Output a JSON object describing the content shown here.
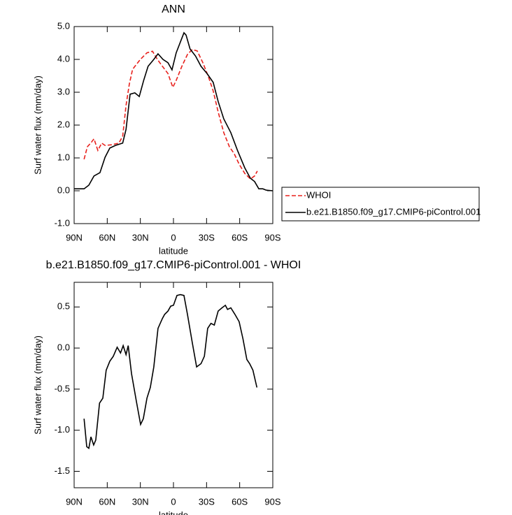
{
  "chart_data": [
    {
      "type": "line",
      "title": "ANN",
      "xlabel": "latitude",
      "ylabel": "Surf water flux (mm/day)",
      "xlim": [
        90,
        -90
      ],
      "ylim": [
        -1,
        5
      ],
      "xticks": [
        {
          "value": 90,
          "label": "90N"
        },
        {
          "value": 60,
          "label": "60N"
        },
        {
          "value": 30,
          "label": "30N"
        },
        0,
        {
          "value": -30,
          "label": "30S"
        },
        {
          "value": -60,
          "label": "60S"
        },
        {
          "value": -90,
          "label": "90S"
        }
      ],
      "yticks": [
        {
          "value": -1,
          "label": "-1.0"
        },
        {
          "value": 0,
          "label": "0.0"
        },
        {
          "value": 1,
          "label": "1.0"
        },
        {
          "value": 2,
          "label": "2.0"
        },
        {
          "value": 3,
          "label": "3.0"
        },
        {
          "value": 4,
          "label": "4.0"
        },
        {
          "value": 5,
          "label": "5.0"
        }
      ],
      "legend": "right",
      "series": [
        {
          "name": "WHOI",
          "color": "#e8201c",
          "dashed": true,
          "x": [
            81,
            78,
            75,
            72,
            68.5,
            65,
            62,
            56,
            49.5,
            46,
            43,
            40,
            37,
            30,
            24,
            19,
            14.6,
            10,
            5,
            0.6,
            -2.5,
            -7.6,
            -12.7,
            -17,
            -21.5,
            -26.6,
            -31.7,
            -36,
            -40.5,
            -45.6,
            -50.7,
            -55,
            -59.5,
            -64.6,
            -69.7,
            -73.5,
            -76
          ],
          "values": [
            0.96,
            1.34,
            1.45,
            1.58,
            1.23,
            1.45,
            1.38,
            1.4,
            1.45,
            1.66,
            2.6,
            3.25,
            3.7,
            4.0,
            4.2,
            4.25,
            4.0,
            3.79,
            3.57,
            3.15,
            3.36,
            3.79,
            4.15,
            4.3,
            4.26,
            3.9,
            3.47,
            3.04,
            2.4,
            1.77,
            1.34,
            1.13,
            0.81,
            0.53,
            0.36,
            0.45,
            0.6
          ]
        },
        {
          "name": "b.e21.B1850.f09_g17.CMIP6-piControl.001",
          "color": "#000000",
          "dashed": false,
          "x": [
            90,
            81,
            76.7,
            72,
            66.6,
            62,
            57.7,
            52.6,
            46,
            43,
            39.3,
            35,
            31,
            27,
            23,
            17.8,
            14,
            9.5,
            5,
            1.3,
            -2.5,
            -6.3,
            -9.5,
            -11.4,
            -15,
            -20,
            -25,
            -30.4,
            -36,
            -40.5,
            -45.6,
            -52,
            -58,
            -64.6,
            -69.7,
            -73.5,
            -77.3,
            -81,
            -84,
            -90
          ],
          "values": [
            0.06,
            0.06,
            0.17,
            0.45,
            0.55,
            1.02,
            1.3,
            1.38,
            1.45,
            1.87,
            2.94,
            2.98,
            2.87,
            3.36,
            3.79,
            4.0,
            4.17,
            4.0,
            3.9,
            3.68,
            4.2,
            4.53,
            4.81,
            4.74,
            4.32,
            4.1,
            3.79,
            3.57,
            3.3,
            2.72,
            2.19,
            1.77,
            1.23,
            0.7,
            0.38,
            0.28,
            0.06,
            0.06,
            0.02,
            0.0
          ]
        }
      ]
    },
    {
      "type": "line",
      "title": "b.e21.B1850.f09_g17.CMIP6-piControl.001 - WHOI",
      "xlabel": "latitude",
      "ylabel": "Surf water flux (mm/day)",
      "xlim": [
        90,
        -90
      ],
      "ylim": [
        -1.7,
        0.8
      ],
      "xticks": [
        {
          "value": 90,
          "label": "90N"
        },
        {
          "value": 60,
          "label": "60N"
        },
        {
          "value": 30,
          "label": "30N"
        },
        0,
        {
          "value": -30,
          "label": "30S"
        },
        {
          "value": -60,
          "label": "60S"
        },
        {
          "value": -90,
          "label": "90S"
        }
      ],
      "yticks": [
        -1.5,
        {
          "value": -1,
          "label": "-1.0"
        },
        -0.5,
        {
          "value": 0,
          "label": "0.0"
        },
        0.5
      ],
      "color": "#000000",
      "x": [
        81,
        78.6,
        76.7,
        74.8,
        72.3,
        70.4,
        67,
        64,
        61,
        57.7,
        54.5,
        51,
        48,
        45.6,
        43,
        41,
        38,
        33.6,
        29.8,
        27.3,
        24,
        21,
        17.8,
        14,
        10,
        8,
        5,
        2.5,
        0,
        -3.2,
        -6.3,
        -9.5,
        -12.7,
        -17,
        -21,
        -25,
        -28,
        -31,
        -34,
        -37,
        -40.5,
        -44,
        -47,
        -49,
        -52,
        -55.7,
        -59.5,
        -63,
        -66.5,
        -69,
        -72,
        -75.6
      ],
      "values": [
        -0.86,
        -1.2,
        -1.22,
        -1.08,
        -1.18,
        -1.12,
        -0.67,
        -0.61,
        -0.27,
        -0.16,
        -0.1,
        0.01,
        -0.06,
        0.03,
        -0.08,
        0.03,
        -0.31,
        -0.65,
        -0.93,
        -0.86,
        -0.61,
        -0.48,
        -0.23,
        0.24,
        0.36,
        0.41,
        0.45,
        0.51,
        0.52,
        0.64,
        0.65,
        0.64,
        0.41,
        0.07,
        -0.23,
        -0.19,
        -0.1,
        0.24,
        0.3,
        0.28,
        0.45,
        0.49,
        0.52,
        0.47,
        0.49,
        0.41,
        0.32,
        0.11,
        -0.14,
        -0.19,
        -0.27,
        -0.48
      ]
    }
  ]
}
